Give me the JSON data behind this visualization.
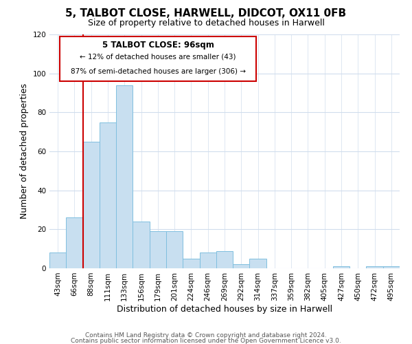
{
  "title": "5, TALBOT CLOSE, HARWELL, DIDCOT, OX11 0FB",
  "subtitle": "Size of property relative to detached houses in Harwell",
  "xlabel": "Distribution of detached houses by size in Harwell",
  "ylabel": "Number of detached properties",
  "bar_color": "#c8dff0",
  "bar_edge_color": "#7fbfdf",
  "bin_labels": [
    "43sqm",
    "66sqm",
    "88sqm",
    "111sqm",
    "133sqm",
    "156sqm",
    "179sqm",
    "201sqm",
    "224sqm",
    "246sqm",
    "269sqm",
    "292sqm",
    "314sqm",
    "337sqm",
    "359sqm",
    "382sqm",
    "405sqm",
    "427sqm",
    "450sqm",
    "472sqm",
    "495sqm"
  ],
  "bar_heights": [
    8,
    26,
    65,
    75,
    94,
    24,
    19,
    19,
    5,
    8,
    9,
    2,
    5,
    0,
    0,
    0,
    0,
    1,
    0,
    1,
    1
  ],
  "ylim": [
    0,
    120
  ],
  "yticks": [
    0,
    20,
    40,
    60,
    80,
    100,
    120
  ],
  "vline_x_index": 2,
  "vline_color": "#cc0000",
  "annotation_title": "5 TALBOT CLOSE: 96sqm",
  "annotation_line1": "← 12% of detached houses are smaller (43)",
  "annotation_line2": "87% of semi-detached houses are larger (306) →",
  "annotation_box_color": "#ffffff",
  "annotation_box_edge_color": "#cc0000",
  "footer1": "Contains HM Land Registry data © Crown copyright and database right 2024.",
  "footer2": "Contains public sector information licensed under the Open Government Licence v3.0.",
  "background_color": "#ffffff",
  "grid_color": "#d0dded",
  "title_fontsize": 11,
  "subtitle_fontsize": 9,
  "axis_label_fontsize": 9,
  "tick_fontsize": 7.5,
  "footer_fontsize": 6.5
}
